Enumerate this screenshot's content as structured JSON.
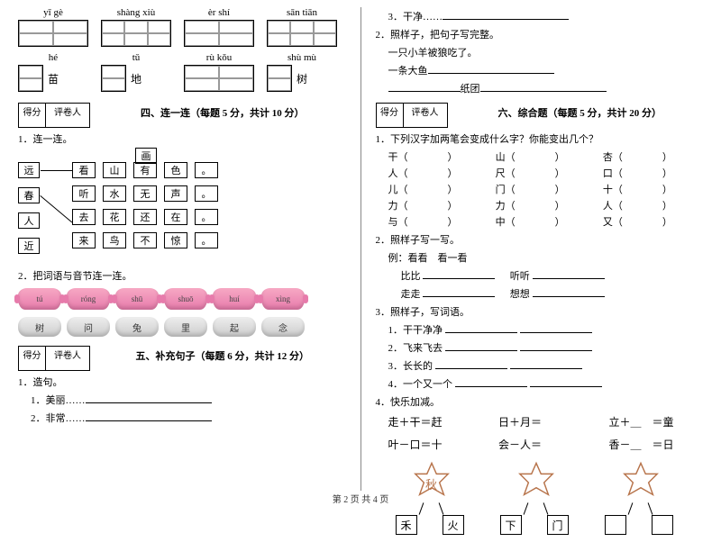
{
  "footer": "第 2 页  共 4 页",
  "left": {
    "pinyin_row1": [
      "yī gè",
      "shàng xiù",
      "èr shí",
      "sān tiān"
    ],
    "pinyin_row2": [
      "hé",
      "tǔ",
      "rù kǒu",
      "shù mù"
    ],
    "fixed_chars_row2": [
      "苗",
      "地",
      "",
      "树"
    ],
    "score_label1": "得分",
    "score_label2": "评卷人",
    "section4_title": "四、连一连（每题 5 分，共计 10 分）",
    "q1": "1．连一连。",
    "match_left": [
      "远",
      "春",
      "人",
      "近"
    ],
    "match_title": "画",
    "match_grid": [
      [
        "看",
        "山",
        "有",
        "色",
        "。"
      ],
      [
        "听",
        "水",
        "无",
        "声",
        "。"
      ],
      [
        "去",
        "花",
        "还",
        "在",
        "。"
      ],
      [
        "来",
        "鸟",
        "不",
        "惊",
        "。"
      ]
    ],
    "q2": "2．把词语与音节连一连。",
    "pink_labels": [
      "tú",
      "róng",
      "shū",
      "shuō",
      "huí",
      "xìng"
    ],
    "gray_labels": [
      "树",
      "问",
      "兔",
      "里",
      "起",
      "念"
    ],
    "section5_title": "五、补充句子（每题 6 分，共计 12 分）",
    "q5_1": "1．造句。",
    "q5_1a": "1．美丽……",
    "q5_1b": "2．非常……"
  },
  "right": {
    "q_top1": "3．干净……",
    "q_top2": "2．照样子，把句子写完整。",
    "q_top2a": "一只小羊被狼吃了。",
    "q_top2b": "一条大鱼",
    "q_top2c_mid": "纸团",
    "score_label1": "得分",
    "score_label2": "评卷人",
    "section6_title": "六、综合题（每题 5 分，共计 20 分）",
    "q6_1": "1．下列汉字加两笔会变成什么字？你能变出几个？",
    "add_chars": [
      [
        "干（",
        "）",
        "山（",
        "）",
        "杏（",
        "）"
      ],
      [
        "人（",
        "）",
        "尺（",
        "）",
        "口（",
        "）"
      ],
      [
        "儿（",
        "）",
        "门（",
        "）",
        "十（",
        "）"
      ],
      [
        "力（",
        "）",
        "力（",
        "）",
        "人（",
        "）"
      ],
      [
        "与（",
        "）",
        "中（",
        "）",
        "又（",
        "）"
      ]
    ],
    "q6_2": "2．照样子写一写。",
    "q6_2ex": "例：看看　看一看",
    "q6_2a_l": "比比",
    "q6_2a_r": "听听",
    "q6_2b_l": "走走",
    "q6_2b_r": "想想",
    "q6_3": "3．照样子，写词语。",
    "q6_3a": "1．干干净净",
    "q6_3b": "2．飞来飞去",
    "q6_3c": "3．长长的",
    "q6_3d": "4．一个又一个",
    "q6_4": "4．快乐加减。",
    "math1": [
      "走＋干＝赶",
      "日＋月＝",
      "立＋＿　＝童"
    ],
    "math2": [
      "叶－口＝十",
      "会－人＝",
      "香－＿　＝日"
    ],
    "stars": [
      {
        "center": "秋",
        "b1": "禾",
        "b2": "火"
      },
      {
        "center": "",
        "b1": "下",
        "b2": "门"
      },
      {
        "center": "",
        "b1": "",
        "b2": ""
      }
    ]
  }
}
